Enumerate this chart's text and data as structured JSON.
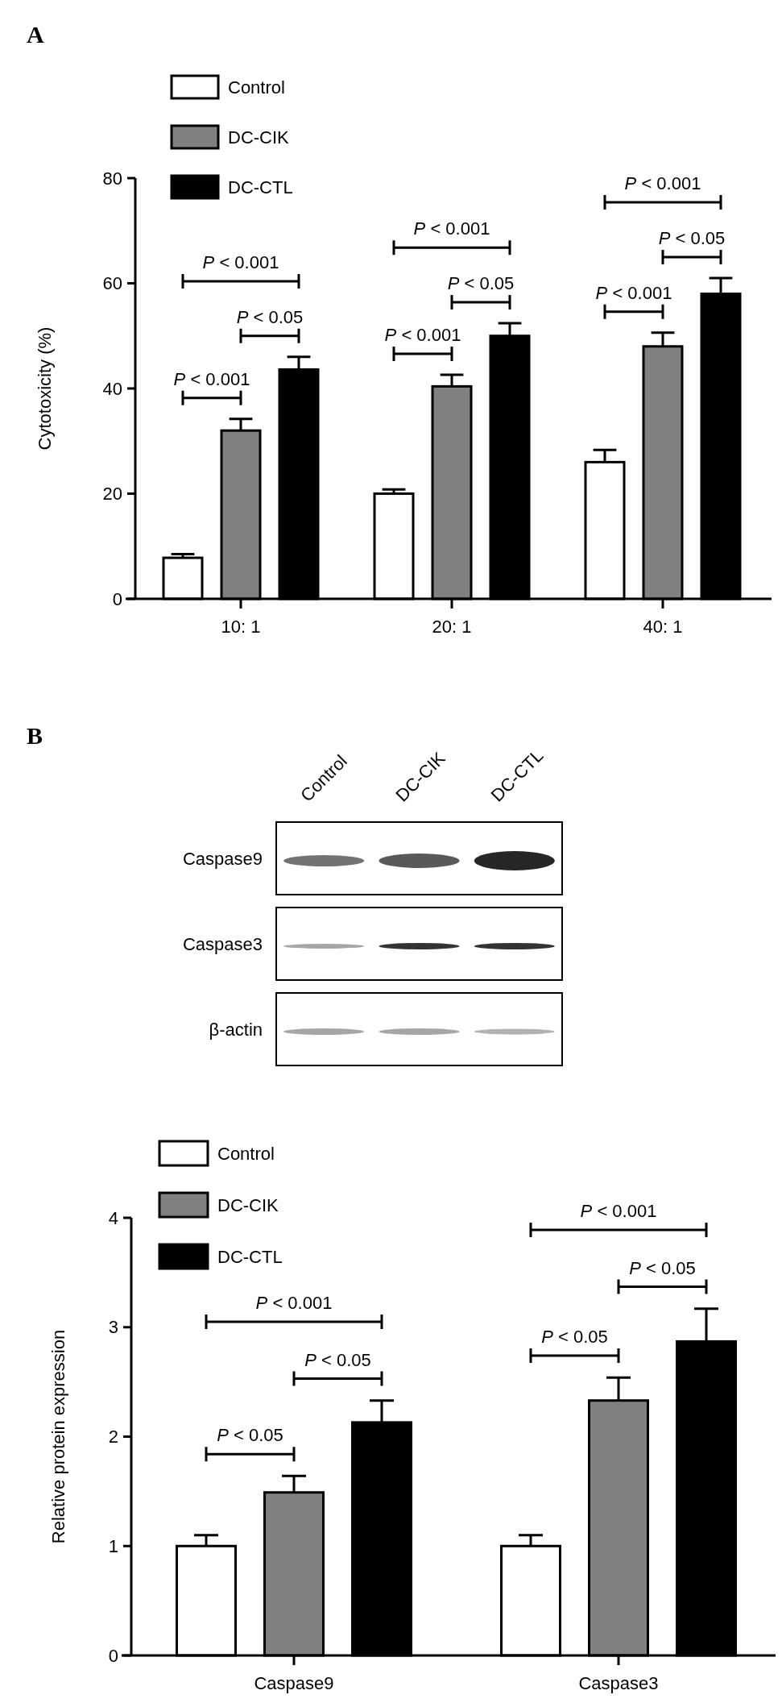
{
  "chart_data": [
    {
      "type": "bar",
      "title": "A",
      "ylabel": "Cytotoxicity (%)",
      "categories": [
        "10: 1",
        "20: 1",
        "40: 1"
      ],
      "series": [
        {
          "name": "Control",
          "color": "#ffffff",
          "values": [
            7.8,
            20,
            26
          ],
          "errors": [
            0.7,
            0.8,
            2.3
          ]
        },
        {
          "name": "DC-CIK",
          "color": "#808080",
          "values": [
            32,
            40.4,
            48
          ],
          "errors": [
            2.2,
            2.2,
            2.6
          ]
        },
        {
          "name": "DC-CTL",
          "color": "#000000",
          "values": [
            43.6,
            50,
            58
          ],
          "errors": [
            2.4,
            2.4,
            3
          ]
        }
      ],
      "ylim": [
        0,
        80
      ],
      "yticks": [
        0,
        20,
        40,
        60,
        80
      ],
      "grid": false,
      "legend": "top left",
      "annotations": [
        "P < 0.001",
        "P < 0.05",
        "P < 0.001",
        "P < 0.001",
        "P < 0.05",
        "P < 0.001",
        "P < 0.001",
        "P < 0.05",
        "P < 0.001"
      ]
    },
    {
      "type": "other",
      "title": "B",
      "categories": [
        "Control",
        "DC-CIK",
        "DC-CTL"
      ],
      "y_categories": [
        "Caspase9",
        "Caspase3",
        "β-actin"
      ]
    },
    {
      "type": "bar",
      "ylabel": "Relative protein expression",
      "categories": [
        "Caspase9",
        "Caspase3"
      ],
      "series": [
        {
          "name": "Control",
          "color": "#ffffff",
          "values": [
            1.0,
            1.0
          ],
          "errors": [
            [
              1.0,
              1.1
            ],
            [
              1.0,
              1.1
            ]
          ]
        },
        {
          "name": "DC-CIK",
          "color": "#808080",
          "values": [
            1.49,
            2.33
          ],
          "errors": [
            [
              1.49,
              1.64
            ],
            [
              2.33,
              2.54
            ]
          ]
        },
        {
          "name": "DC-CTL",
          "color": "#000000",
          "values": [
            2.13,
            2.87
          ],
          "errors": [
            [
              2.13,
              2.33
            ],
            [
              2.87,
              3.17
            ]
          ]
        }
      ],
      "ylim": [
        0,
        4
      ],
      "yticks": [
        0,
        1,
        2,
        3,
        4
      ],
      "grid": false,
      "legend": "top left",
      "annotations": [
        "P < 0.05",
        "P < 0.05",
        "P < 0.001",
        "P < 0.05",
        "P < 0.05",
        "P < 0.001"
      ]
    }
  ]
}
